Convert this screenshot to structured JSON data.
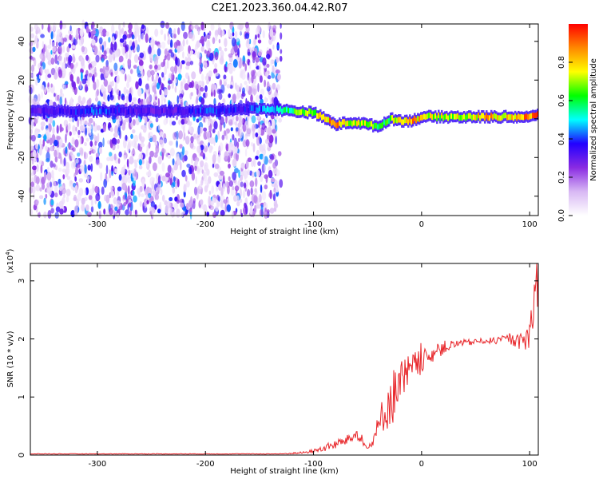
{
  "title": "C2E1.2023.360.04.42.R07",
  "chart_data": [
    {
      "type": "heatmap",
      "xlabel": "Height of straight line (km)",
      "ylabel": "Frequency (Hz)",
      "xlim": [
        -362,
        108
      ],
      "ylim": [
        -50,
        49
      ],
      "xticks": [
        -300,
        -200,
        -100,
        0,
        100
      ],
      "yticks": [
        -40,
        -20,
        0,
        20,
        40
      ],
      "colorbar": {
        "label": "Normalized spectral amplitude",
        "range": [
          0,
          1
        ],
        "ticks": [
          "0.0",
          "0.2",
          "0.4",
          "0.6",
          "0.8"
        ],
        "colormap": [
          "#ffffff",
          "#d8b8f4",
          "#8a2be2",
          "#2200ff",
          "#00ffff",
          "#00ff00",
          "#ffff00",
          "#ff8800",
          "#ff0000"
        ]
      },
      "noise_region": {
        "x": [
          -362,
          -130
        ],
        "amplitude": 0.15
      },
      "ridge": {
        "x": [
          -362,
          -330,
          -300,
          -260,
          -230,
          -200,
          -170,
          -140,
          -120,
          -100,
          -90,
          -80,
          -70,
          -60,
          -50,
          -40,
          -30,
          -20,
          -10,
          0,
          20,
          40,
          60,
          80,
          100,
          108
        ],
        "frequency_hz": [
          4,
          4,
          4,
          4,
          4,
          4,
          5,
          5,
          4,
          3,
          0,
          -3,
          -2,
          -2,
          -3,
          -4,
          0,
          -1,
          -1,
          1,
          1,
          1,
          1,
          1,
          1,
          2
        ],
        "amplitude": [
          0.3,
          0.35,
          0.4,
          0.3,
          0.3,
          0.4,
          0.35,
          0.45,
          0.6,
          0.7,
          0.8,
          0.85,
          0.75,
          0.7,
          0.7,
          0.6,
          0.65,
          0.8,
          0.85,
          0.75,
          0.7,
          0.75,
          0.8,
          0.8,
          0.85,
          0.9
        ]
      }
    },
    {
      "type": "line",
      "xlabel": "Height of straight line (km)",
      "ylabel": "SNR (10 * v/v)",
      "yunit": "(x10",
      "yunit_exp": "4",
      "yunit_close": ")",
      "xlim": [
        -362,
        108
      ],
      "ylim": [
        0,
        3.3
      ],
      "xticks": [
        -300,
        -200,
        -100,
        0,
        100
      ],
      "yticks": [
        0,
        1,
        2,
        3
      ],
      "color": "#e8262a",
      "series": [
        {
          "x": [
            -362,
            -300,
            -200,
            -130,
            -110,
            -100,
            -90,
            -80,
            -70,
            -60,
            -55,
            -50,
            -45,
            -40,
            -35,
            -30,
            -25,
            -20,
            -15,
            -10,
            -5,
            0,
            10,
            20,
            30,
            40,
            50,
            60,
            70,
            80,
            90,
            95,
            100,
            103,
            106,
            108
          ],
          "values": [
            0.02,
            0.02,
            0.02,
            0.02,
            0.04,
            0.07,
            0.12,
            0.18,
            0.25,
            0.35,
            0.3,
            0.08,
            0.25,
            0.45,
            0.75,
            0.9,
            1.05,
            1.25,
            1.3,
            1.45,
            1.55,
            1.6,
            1.75,
            1.85,
            1.9,
            1.93,
            1.95,
            1.97,
            1.97,
            2.0,
            1.95,
            1.95,
            2.1,
            2.4,
            2.9,
            3.3
          ],
          "noise": [
            0.005,
            0.005,
            0.005,
            0.005,
            0.02,
            0.03,
            0.06,
            0.08,
            0.08,
            0.1,
            0.1,
            0.05,
            0.15,
            0.25,
            0.35,
            0.45,
            0.5,
            0.45,
            0.4,
            0.3,
            0.25,
            0.2,
            0.15,
            0.12,
            0.08,
            0.06,
            0.05,
            0.05,
            0.06,
            0.08,
            0.12,
            0.2,
            0.35,
            0.5,
            0.6,
            0.6
          ]
        }
      ]
    }
  ]
}
